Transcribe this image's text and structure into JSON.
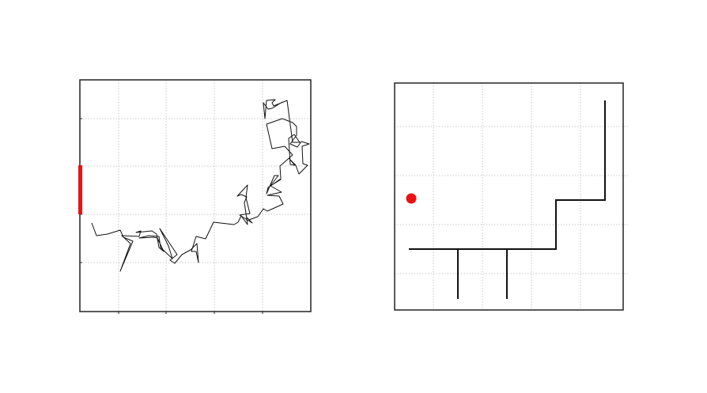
{
  "colors": {
    "background": "#ffffff",
    "frame": "#222222",
    "grid": "#bbbbbb",
    "path": "#111111",
    "marker": "#ee1111"
  },
  "left_panel": {
    "grid": true,
    "marker": {
      "shape": "bar",
      "edge": "left"
    }
  },
  "right_panel": {
    "grid": true,
    "marker": {
      "shape": "dot"
    }
  }
}
